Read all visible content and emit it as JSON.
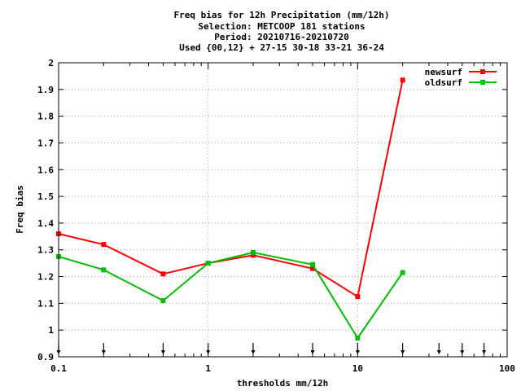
{
  "chart_data": {
    "type": "line",
    "title_lines": [
      "Freq bias  for 12h Precipitation (mm/12h)",
      "Selection: METCOOP    181 stations",
      "Period: 20210716-20210720",
      "Used {00,12} + 27-15 30-18 33-21 36-24"
    ],
    "xlabel": "thresholds mm/12h",
    "ylabel": "Freq bias",
    "x_scale": "log",
    "xlim": [
      0.1,
      100
    ],
    "ylim": [
      0.9,
      2.0
    ],
    "x_ticks": [
      0.1,
      1,
      10,
      100
    ],
    "x_tick_labels": [
      "0.1",
      "1",
      "10",
      "100"
    ],
    "y_ticks": [
      0.9,
      1.0,
      1.1,
      1.2,
      1.3,
      1.4,
      1.5,
      1.6,
      1.7,
      1.8,
      1.9,
      2.0
    ],
    "y_tick_labels": [
      "0.9",
      "1",
      "1.1",
      "1.2",
      "1.3",
      "1.4",
      "1.5",
      "1.6",
      "1.7",
      "1.8",
      "1.9",
      "2"
    ],
    "grid": true,
    "legend_position": "top-right",
    "threshold_markers": [
      0.1,
      0.2,
      0.5,
      1,
      2,
      5,
      10,
      20,
      35,
      50,
      70
    ],
    "series": [
      {
        "name": "newsurf",
        "color": "#ff0000",
        "x": [
          0.1,
          0.2,
          0.5,
          1,
          2,
          5,
          10,
          20
        ],
        "y": [
          1.36,
          1.32,
          1.21,
          1.25,
          1.28,
          1.23,
          1.125,
          1.935
        ]
      },
      {
        "name": "oldsurf",
        "color": "#00c000",
        "x": [
          0.1,
          0.2,
          0.5,
          1,
          2,
          5,
          10,
          20
        ],
        "y": [
          1.275,
          1.225,
          1.11,
          1.25,
          1.29,
          1.245,
          0.97,
          1.215
        ]
      }
    ]
  }
}
